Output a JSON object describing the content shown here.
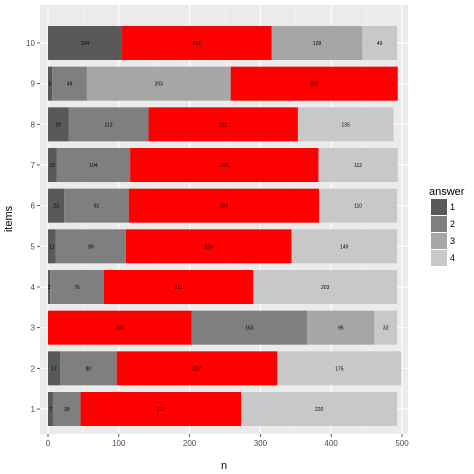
{
  "chart_data": {
    "type": "bar",
    "orientation": "horizontal",
    "stacked": true,
    "xlabel": "n",
    "ylabel": "items",
    "xlim": [
      0,
      500
    ],
    "x_ticks": [
      0,
      100,
      200,
      300,
      400,
      500
    ],
    "grid": true,
    "legend_title": "answer",
    "legend_position": "right",
    "categories": [
      "1",
      "2",
      "3",
      "4",
      "5",
      "6",
      "7",
      "8",
      "9",
      "10"
    ],
    "series": [
      {
        "name": "1",
        "color": "#595959",
        "values": [
          7,
          17,
          0,
          3,
          11,
          23,
          12,
          29,
          6,
          104
        ],
        "labels": [
          "7",
          "17",
          "",
          "3",
          "11",
          "23",
          "12",
          "29",
          "6",
          "104"
        ]
      },
      {
        "name": "2",
        "color": "#7f7f7f",
        "values": [
          39,
          80,
          163,
          76,
          99,
          91,
          104,
          113,
          49,
          0
        ],
        "labels": [
          "39",
          "80",
          "163",
          "76",
          "99",
          "91",
          "104",
          "113",
          "49",
          ""
        ]
      },
      {
        "name": "3",
        "color": "#a6a6a6",
        "values": [
          0,
          0,
          95,
          0,
          0,
          0,
          0,
          0,
          203,
          128
        ],
        "labels": [
          "",
          "",
          "95",
          "",
          "",
          "",
          "",
          "",
          "203",
          "128"
        ]
      },
      {
        "name": "4",
        "color": "#c8c8c8",
        "values": [
          220,
          175,
          32,
          203,
          149,
          110,
          112,
          135,
          0,
          49
        ],
        "labels": [
          "220",
          "175",
          "32",
          "203",
          "149",
          "110",
          "112",
          "135",
          "",
          "49"
        ]
      },
      {
        "name": "",
        "color": "#ff0000",
        "values": [
          227,
          227,
          203,
          211,
          234,
          269,
          266,
          211,
          236,
          212
        ],
        "labels": [
          "227",
          "227",
          "203",
          "211",
          "234",
          "269",
          "266",
          "211",
          "236",
          "212"
        ]
      }
    ],
    "stack_order": [
      [
        "1",
        "2",
        "red",
        "4"
      ],
      [
        "1",
        "2",
        "red",
        "4"
      ],
      [
        "red",
        "2",
        "3",
        "4"
      ],
      [
        "1",
        "2",
        "red",
        "4"
      ],
      [
        "1",
        "2",
        "red",
        "4"
      ],
      [
        "1",
        "2",
        "red",
        "4"
      ],
      [
        "1",
        "2",
        "red",
        "4"
      ],
      [
        "1",
        "2",
        "red",
        "4"
      ],
      [
        "1",
        "2",
        "3",
        "red"
      ],
      [
        "1",
        "red",
        "3",
        "4"
      ]
    ]
  }
}
